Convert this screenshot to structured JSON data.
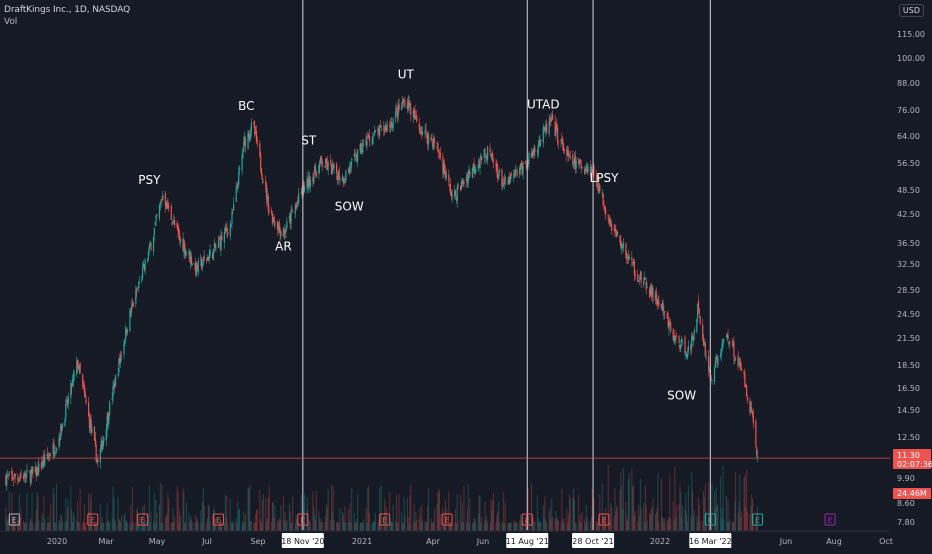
{
  "header": {
    "title": "DraftKings Inc., 1D, NASDAQ",
    "volume_label": "Vol",
    "currency_box": "USD"
  },
  "colors": {
    "background": "#161a25",
    "up": "#26a69a",
    "down": "#ef5350",
    "text": "#b2b5be",
    "marker_line": "#d1d4dc",
    "price_line": "#ef5350"
  },
  "price_axis": {
    "ticks": [
      "115.00",
      "100.00",
      "88.00",
      "76.00",
      "64.00",
      "56.50",
      "48.50",
      "42.50",
      "36.50",
      "32.50",
      "28.50",
      "24.50",
      "21.50",
      "18.50",
      "16.50",
      "14.50",
      "12.50",
      "9.90",
      "8.60",
      "7.80"
    ],
    "last_price": "11.30",
    "countdown": "02:07:36",
    "volume_badge": "24.46M"
  },
  "time_axis": {
    "labels": [
      "2020",
      "Mar",
      "May",
      "Jul",
      "Sep",
      "2021",
      "Apr",
      "Jun",
      "Oct",
      "2022",
      "Jun",
      "Aug",
      "Oct"
    ],
    "highlighted": [
      "18 Nov '20",
      "11 Aug '21",
      "28 Oct '21",
      "16 Mar '22"
    ]
  },
  "earnings_marker": "E",
  "chart_data": {
    "type": "candlestick",
    "title": "DraftKings Inc., 1D, NASDAQ",
    "scale": "log",
    "ylim": [
      7.8,
      120
    ],
    "xlim": [
      "2019-11-25",
      "2022-10-15"
    ],
    "path_points": [
      {
        "date": "2019-12-01",
        "price": 10.2
      },
      {
        "date": "2020-01-05",
        "price": 10.4
      },
      {
        "date": "2020-02-01",
        "price": 12.2
      },
      {
        "date": "2020-02-25",
        "price": 18.5
      },
      {
        "date": "2020-03-20",
        "price": 11.0
      },
      {
        "date": "2020-04-10",
        "price": 17.0
      },
      {
        "date": "2020-04-25",
        "price": 23.0
      },
      {
        "date": "2020-05-20",
        "price": 33.0
      },
      {
        "date": "2020-06-05",
        "price": 44.0
      },
      {
        "date": "2020-06-25",
        "price": 35.0
      },
      {
        "date": "2020-07-15",
        "price": 30.0
      },
      {
        "date": "2020-08-05",
        "price": 33.0
      },
      {
        "date": "2020-08-25",
        "price": 38.0
      },
      {
        "date": "2020-09-10",
        "price": 58.0
      },
      {
        "date": "2020-09-20",
        "price": 63.0
      },
      {
        "date": "2020-10-10",
        "price": 40.0
      },
      {
        "date": "2020-10-26",
        "price": 36.0
      },
      {
        "date": "2020-11-18",
        "price": 45.0
      },
      {
        "date": "2020-12-10",
        "price": 52.0
      },
      {
        "date": "2021-01-05",
        "price": 48.0
      },
      {
        "date": "2021-02-01",
        "price": 58.0
      },
      {
        "date": "2021-03-01",
        "price": 63.0
      },
      {
        "date": "2021-03-20",
        "price": 72.0
      },
      {
        "date": "2021-04-05",
        "price": 62.0
      },
      {
        "date": "2021-04-25",
        "price": 57.0
      },
      {
        "date": "2021-05-15",
        "price": 43.0
      },
      {
        "date": "2021-06-05",
        "price": 50.0
      },
      {
        "date": "2021-06-25",
        "price": 55.0
      },
      {
        "date": "2021-07-15",
        "price": 46.0
      },
      {
        "date": "2021-08-11",
        "price": 52.0
      },
      {
        "date": "2021-09-01",
        "price": 61.0
      },
      {
        "date": "2021-09-08",
        "price": 64.0
      },
      {
        "date": "2021-10-01",
        "price": 52.0
      },
      {
        "date": "2021-10-28",
        "price": 50.0
      },
      {
        "date": "2021-11-20",
        "price": 37.0
      },
      {
        "date": "2021-12-20",
        "price": 29.0
      },
      {
        "date": "2022-01-15",
        "price": 25.0
      },
      {
        "date": "2022-02-01",
        "price": 21.0
      },
      {
        "date": "2022-02-20",
        "price": 19.5
      },
      {
        "date": "2022-03-01",
        "price": 24.5
      },
      {
        "date": "2022-03-16",
        "price": 17.0
      },
      {
        "date": "2022-04-05",
        "price": 21.5
      },
      {
        "date": "2022-04-25",
        "price": 17.0
      },
      {
        "date": "2022-05-05",
        "price": 14.0
      },
      {
        "date": "2022-05-11",
        "price": 11.3
      }
    ],
    "wyckoff_labels": [
      {
        "text": "PSY",
        "date": "2020-05-20",
        "price": 46.5
      },
      {
        "text": "BC",
        "date": "2020-09-12",
        "price": 68.0
      },
      {
        "text": "AR",
        "date": "2020-10-26",
        "price": 33.0
      },
      {
        "text": "ST",
        "date": "2020-11-25",
        "price": 57.0
      },
      {
        "text": "SOW",
        "date": "2021-01-12",
        "price": 40.5
      },
      {
        "text": "UT",
        "date": "2021-03-20",
        "price": 80.0
      },
      {
        "text": "UTAD",
        "date": "2021-08-30",
        "price": 68.5
      },
      {
        "text": "LPSY",
        "date": "2021-11-10",
        "price": 47.0
      },
      {
        "text": "SOW",
        "date": "2022-02-10",
        "price": 15.3
      }
    ],
    "vertical_markers": [
      "2020-11-18",
      "2021-08-11",
      "2021-10-28",
      "2022-03-16"
    ],
    "last_price": 11.3,
    "last_volume": "24.46M",
    "earnings_dates": [
      "2019-12-12",
      "2020-03-14",
      "2020-05-12",
      "2020-08-10",
      "2020-11-18",
      "2021-02-23",
      "2021-05-08",
      "2021-08-11",
      "2021-11-10",
      "2022-03-16",
      "2022-05-11",
      "2022-08-05"
    ]
  }
}
